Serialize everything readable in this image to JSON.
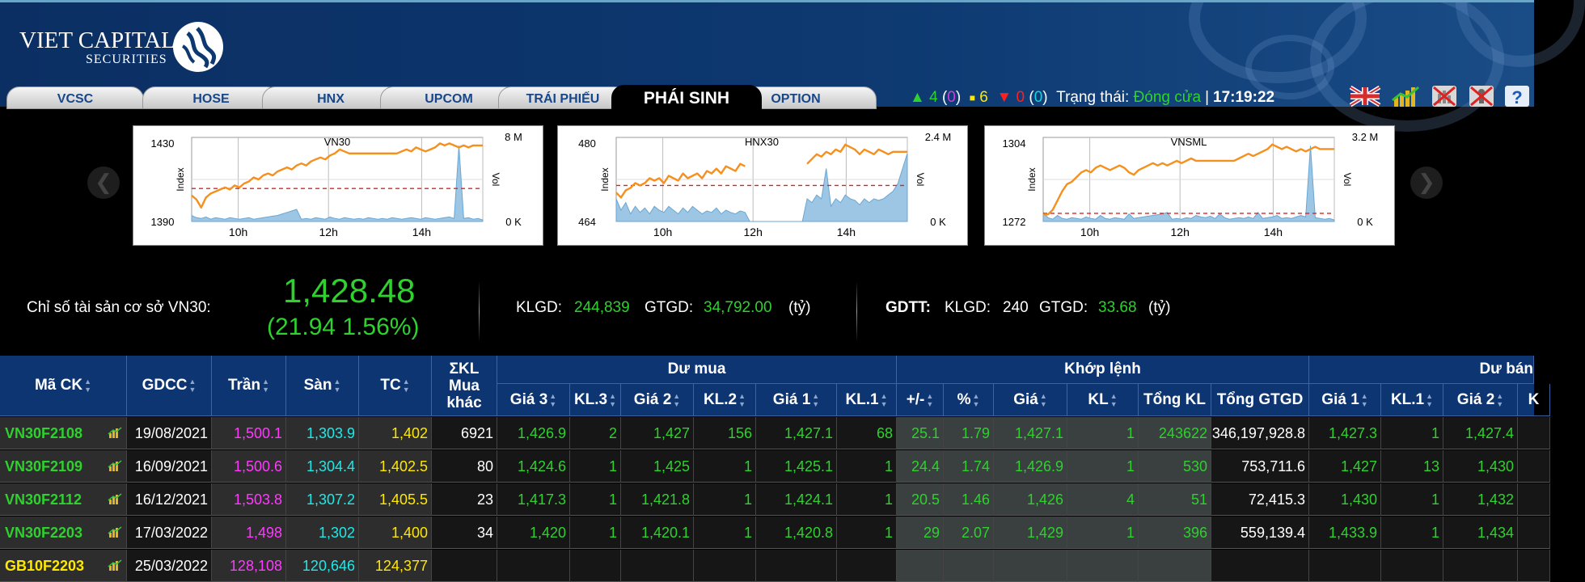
{
  "brand": {
    "name": "VIET CAPITAL",
    "sub": "SECURITIES"
  },
  "tabs": [
    "VCSC",
    "HOSE",
    "HNX",
    "UPCOM",
    "TRÁI PHIẾU",
    "PHÁI SINH",
    "OPTION"
  ],
  "active_tab": "PHÁI SINH",
  "status": {
    "up_count": "4",
    "up_ce": "0",
    "ref_count": "6",
    "down_count": "0",
    "down_fl": "0",
    "state_label": "Trạng thái:",
    "state_value": "Đóng cửa",
    "separator": "|",
    "time": "17:19:22"
  },
  "header_icons": [
    "uk-flag-icon",
    "chart-icon",
    "no-chart-icon",
    "no-sound-icon",
    "help-icon"
  ],
  "colors": {
    "up": "#2ed12e",
    "ceiling": "#ff39ff",
    "floor": "#20e8e8",
    "reference": "#ffe800",
    "header_bg": "#0c3572",
    "price_line": "#f5901e",
    "volume": "#7eb3d8"
  },
  "charts": [
    {
      "title": "VN30",
      "y_max": "1430",
      "y_min": "1390",
      "vol_max": "8 M",
      "vol_min": "0 K",
      "y_axis_label": "Index",
      "vol_axis_label": "Vol",
      "x_ticks": [
        "10h",
        "12h",
        "14h"
      ],
      "price_path": [
        1403,
        1401,
        1397,
        1402,
        1404,
        1405,
        1406,
        1407,
        1406,
        1408,
        1407,
        1409,
        1410,
        1412,
        1411,
        1413,
        1414,
        1413,
        1415,
        1416,
        1417,
        1416,
        1418,
        1419,
        1418,
        1420,
        1421,
        1422,
        1421,
        1423,
        1424,
        1426,
        1425,
        1424,
        1424,
        1424,
        1424,
        1424,
        1424,
        1424,
        1424,
        1424,
        1424,
        1424,
        1425,
        1426,
        1425,
        1427,
        1426,
        1425,
        1426,
        1427,
        1429,
        1428,
        1429,
        1428,
        1427,
        1428,
        1427,
        1428,
        1428,
        1428
      ],
      "ref": 1406.5,
      "lo": 1390,
      "hi": 1432,
      "volume_path": [
        0.08,
        0.05,
        0.04,
        0.06,
        0.03,
        0.05,
        0.04,
        0.03,
        0.05,
        0.04,
        0.03,
        0.04,
        0.05,
        0.03,
        0.04,
        0.05,
        0.06,
        0.07,
        0.08,
        0.1,
        0.12,
        0.14,
        0.16,
        0.03,
        0.04,
        0.03,
        0.05,
        0.04,
        0.03,
        0.06,
        0.04,
        0.03,
        0.05,
        0.04,
        0.03,
        0.04,
        0.03,
        0.05,
        0.04,
        0.03,
        0.04,
        0.03,
        0.05,
        0.04,
        0.03,
        0.04,
        0.05,
        0.04,
        0.03,
        0.05,
        0.04,
        0.03,
        0.04,
        0.05,
        0.06,
        0.04,
        1.0,
        0.04,
        0.05,
        0.03,
        0.04,
        0.02
      ],
      "gap": null
    },
    {
      "title": "HNX30",
      "y_max": "480",
      "y_min": "464",
      "vol_max": "2.4 M",
      "vol_min": "0 K",
      "y_axis_label": "Index",
      "vol_axis_label": "Vol",
      "x_ticks": [
        "10h",
        "12h",
        "14h"
      ],
      "price_path": [
        470,
        469,
        470.5,
        471,
        472,
        471.5,
        472,
        473,
        472.5,
        473,
        472,
        473.5,
        473,
        472.5,
        474,
        473,
        473.5,
        474,
        473,
        474.5,
        474,
        475,
        474,
        475.5,
        475,
        474.5,
        476,
        475.5,
        null,
        null,
        null,
        null,
        null,
        null,
        null,
        null,
        null,
        null,
        null,
        null,
        476,
        477,
        478,
        477.5,
        478.5,
        478,
        479,
        478.5,
        480,
        479.5,
        479,
        478,
        479,
        478.5,
        478,
        479,
        478.5,
        478,
        478.5,
        478.5,
        478.5,
        478.5
      ],
      "ref": 471.5,
      "lo": 464,
      "hi": 481.5,
      "volume_path": [
        0.3,
        0.15,
        0.25,
        0.1,
        0.2,
        0.12,
        0.18,
        0.1,
        0.2,
        0.15,
        0.12,
        0.2,
        0.15,
        0.1,
        0.18,
        0.12,
        0.2,
        0.15,
        0.1,
        0.14,
        0.12,
        0.18,
        0.1,
        0.15,
        0.12,
        0.1,
        0.14,
        0.12,
        0,
        0,
        0,
        0,
        0,
        0,
        0,
        0,
        0,
        0,
        0,
        0,
        0.3,
        0.25,
        0.35,
        0.3,
        0.7,
        0.2,
        0.3,
        0.25,
        0.35,
        0.3,
        0.28,
        0.22,
        0.3,
        0.25,
        0.3,
        0.28,
        0.3,
        0.35,
        0.4,
        0.5,
        0.7,
        0.9
      ],
      "gap": [
        28,
        40
      ]
    },
    {
      "title": "VNSML",
      "y_max": "1304",
      "y_min": "1272",
      "vol_max": "3.2 M",
      "vol_min": "0 K",
      "y_axis_label": "Index",
      "vol_axis_label": "Vol",
      "x_ticks": [
        "10h",
        "12h",
        "14h"
      ],
      "price_path": [
        1273,
        1273,
        1275,
        1279,
        1283,
        1286,
        1287,
        1289,
        1291,
        1292,
        1291,
        1293,
        1294,
        1293,
        1292,
        1293,
        1294,
        1293,
        1291,
        1290,
        1292,
        1293,
        1294,
        1295,
        1294,
        1295,
        1294,
        1295,
        1296,
        1295,
        1296,
        1297,
        1296,
        1296,
        1296,
        1296,
        1296,
        1296,
        1296,
        1296,
        1296,
        1297,
        1298,
        1299,
        1298,
        1299,
        1300,
        1301,
        1303,
        1302,
        1301,
        1302,
        1301,
        1300,
        1301,
        1300,
        1301,
        1302,
        1301,
        1301,
        1301,
        1301
      ],
      "ref": 1273.5,
      "lo": 1270,
      "hi": 1306,
      "volume_path": [
        0.12,
        0.05,
        0.03,
        0.08,
        0.04,
        0.03,
        0.05,
        0.04,
        0.03,
        0.06,
        0.04,
        0.03,
        0.08,
        0.04,
        0.03,
        0.05,
        0.04,
        0.03,
        0.1,
        0.04,
        0.05,
        0.06,
        0.07,
        0.08,
        0.09,
        0.1,
        0.12,
        0.03,
        0.04,
        0.03,
        0.05,
        0.04,
        0.08,
        0.06,
        0.05,
        0.07,
        0.04,
        0.1,
        0.05,
        0.03,
        0.04,
        0.05,
        0.04,
        0.06,
        0.04,
        0.12,
        0.04,
        0.05,
        0.06,
        0.08,
        0.04,
        0.05,
        0.04,
        0.06,
        0.08,
        0.06,
        1.0,
        0.05,
        0.04,
        0.03,
        0.04,
        0.02
      ],
      "gap": null
    }
  ],
  "summary": {
    "label": "Chỉ số tài sản cơ sở VN30:",
    "index": "1,428.48",
    "change": "(21.94  1.56%)",
    "klgd_label": "KLGD:",
    "klgd": "244,839",
    "gtgd_label": "GTGD:",
    "gtgd": "34,792.00",
    "unit": "(tỷ)",
    "gdtt_label": "GDTT:",
    "gdtt_klgd_label": "KLGD:",
    "gdtt_klgd": "240",
    "gdtt_gtgd_label": "GTGD:",
    "gdtt_gtgd": "33.68",
    "gdtt_unit": "(tỷ)"
  },
  "table": {
    "group_headers": {
      "buy": "Dư mua",
      "match": "Khớp lệnh",
      "sell": "Dư bán"
    },
    "columns": {
      "symbol": "Mã CK",
      "gdcc": "GDCC",
      "ceil": "Trần",
      "floor": "Sàn",
      "ref": "TC",
      "kl_other_1": "ΣKL",
      "kl_other_2": "Mua",
      "kl_other_3": "khác",
      "b_p3": "Giá 3",
      "b_v3": "KL.3",
      "b_p2": "Giá 2",
      "b_v2": "KL.2",
      "b_p1": "Giá 1",
      "b_v1": "KL.1",
      "chg": "+/-",
      "pct": "%",
      "price": "Giá",
      "vol": "KL",
      "total_vol": "Tổng KL",
      "total_val": "Tổng GTGD",
      "s_p1": "Giá 1",
      "s_v1": "KL.1",
      "s_p2": "Giá 2",
      "s_v2": "K"
    },
    "rows": [
      {
        "symbol": "VN30F2108",
        "gdcc": "19/08/2021",
        "ceil": "1,500.1",
        "floor": "1,303.9",
        "ref": "1,402",
        "other": "6921",
        "b_p3": "1,426.9",
        "b_v3": "2",
        "b_p2": "1,427",
        "b_v2": "156",
        "b_p1": "1,427.1",
        "b_v1": "68",
        "chg": "25.1",
        "pct": "1.79",
        "price": "1,427.1",
        "vol": "1",
        "total_vol": "243622",
        "total_val": "346,197,928.8",
        "s_p1": "1,427.3",
        "s_v1": "1",
        "s_p2": "1,427.4",
        "s_v2": ""
      },
      {
        "symbol": "VN30F2109",
        "gdcc": "16/09/2021",
        "ceil": "1,500.6",
        "floor": "1,304.4",
        "ref": "1,402.5",
        "other": "80",
        "b_p3": "1,424.6",
        "b_v3": "1",
        "b_p2": "1,425",
        "b_v2": "1",
        "b_p1": "1,425.1",
        "b_v1": "1",
        "chg": "24.4",
        "pct": "1.74",
        "price": "1,426.9",
        "vol": "1",
        "total_vol": "530",
        "total_val": "753,711.6",
        "s_p1": "1,427",
        "s_v1": "13",
        "s_p2": "1,430",
        "s_v2": ""
      },
      {
        "symbol": "VN30F2112",
        "gdcc": "16/12/2021",
        "ceil": "1,503.8",
        "floor": "1,307.2",
        "ref": "1,405.5",
        "other": "23",
        "b_p3": "1,417.3",
        "b_v3": "1",
        "b_p2": "1,421.8",
        "b_v2": "1",
        "b_p1": "1,424.1",
        "b_v1": "1",
        "chg": "20.5",
        "pct": "1.46",
        "price": "1,426",
        "vol": "4",
        "total_vol": "51",
        "total_val": "72,415.3",
        "s_p1": "1,430",
        "s_v1": "1",
        "s_p2": "1,432",
        "s_v2": ""
      },
      {
        "symbol": "VN30F2203",
        "gdcc": "17/03/2022",
        "ceil": "1,498",
        "floor": "1,302",
        "ref": "1,400",
        "other": "34",
        "b_p3": "1,420",
        "b_v3": "1",
        "b_p2": "1,420.1",
        "b_v2": "1",
        "b_p1": "1,420.8",
        "b_v1": "1",
        "chg": "29",
        "pct": "2.07",
        "price": "1,429",
        "vol": "1",
        "total_vol": "396",
        "total_val": "559,139.4",
        "s_p1": "1,433.9",
        "s_v1": "1",
        "s_p2": "1,434",
        "s_v2": ""
      },
      {
        "symbol": "GB10F2203",
        "gdcc": "25/03/2022",
        "ceil": "128,108",
        "floor": "120,646",
        "ref": "124,377",
        "other": "",
        "b_p3": "",
        "b_v3": "",
        "b_p2": "",
        "b_v2": "",
        "b_p1": "",
        "b_v1": "",
        "chg": "",
        "pct": "",
        "price": "",
        "vol": "",
        "total_vol": "",
        "total_val": "",
        "s_p1": "",
        "s_v1": "",
        "s_p2": "",
        "s_v2": ""
      }
    ]
  }
}
